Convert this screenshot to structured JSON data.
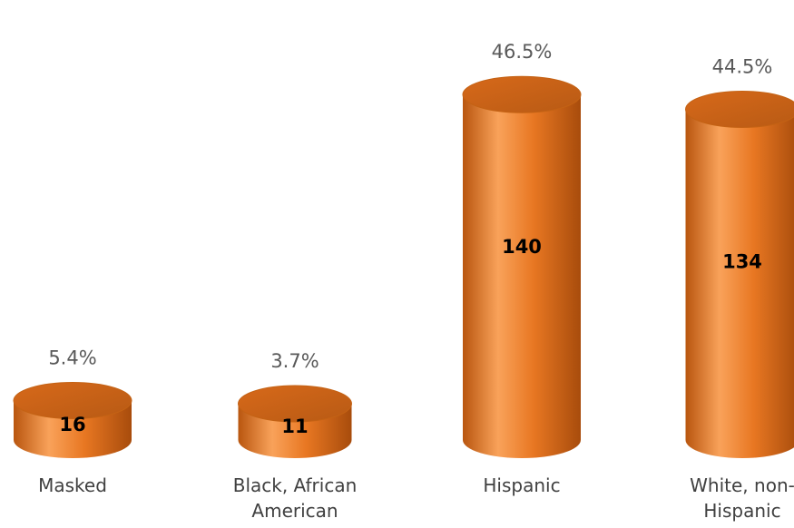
{
  "chart_data": {
    "type": "bar",
    "style": "3d-cylinder",
    "categories": [
      [
        "Masked"
      ],
      [
        "Black, African",
        "American"
      ],
      [
        "Hispanic"
      ],
      [
        "White, non-",
        "Hispanic"
      ]
    ],
    "values": [
      16,
      11,
      140,
      134
    ],
    "percent_labels": [
      "5.4%",
      "3.7%",
      "46.5%",
      "44.5%"
    ],
    "colors": {
      "bar": "#e87722",
      "bar_dark": "#b9560f",
      "bar_light": "#f9a25a"
    },
    "grid": false,
    "legend": "none"
  }
}
